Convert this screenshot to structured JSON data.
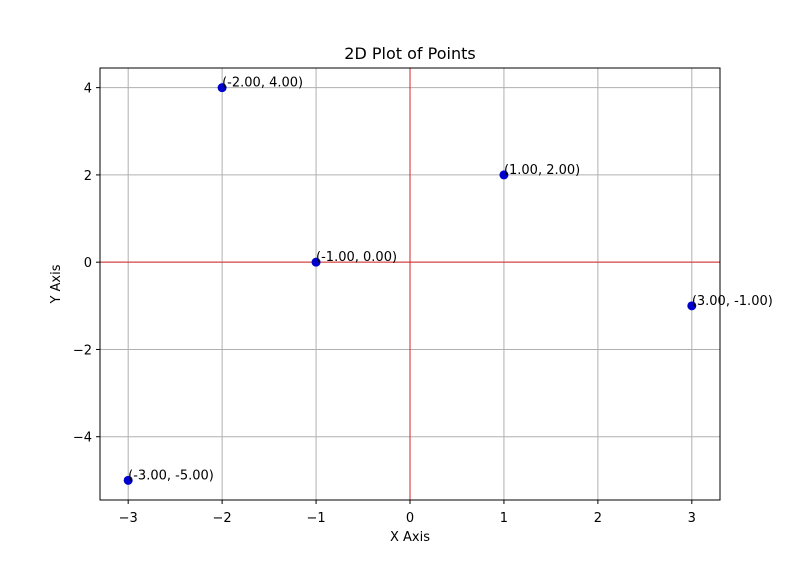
{
  "chart_data": {
    "type": "scatter",
    "title": "2D Plot of Points",
    "xlabel": "X Axis",
    "ylabel": "Y Axis",
    "xlim": [
      -3.3,
      3.3
    ],
    "ylim": [
      -5.45,
      4.45
    ],
    "xticks": [
      -3,
      -2,
      -1,
      0,
      1,
      2,
      3
    ],
    "xtick_labels": [
      "−3",
      "−2",
      "−1",
      "0",
      "1",
      "2",
      "3"
    ],
    "yticks": [
      -4,
      -2,
      0,
      2,
      4
    ],
    "ytick_labels": [
      "−4",
      "−2",
      "0",
      "2",
      "4"
    ],
    "grid": true,
    "reference_lines": {
      "x": 0,
      "y": 0,
      "color": "#d62728"
    },
    "series": [
      {
        "color": "#0000cc",
        "points": [
          {
            "x": -2,
            "y": 4,
            "label": "(-2.00, 4.00)"
          },
          {
            "x": 1,
            "y": 2,
            "label": "(1.00, 2.00)"
          },
          {
            "x": -1,
            "y": 0,
            "label": "(-1.00, 0.00)"
          },
          {
            "x": 3,
            "y": -1,
            "label": "(3.00, -1.00)"
          },
          {
            "x": -3,
            "y": -5,
            "label": "(-3.00, -5.00)"
          }
        ]
      }
    ]
  }
}
